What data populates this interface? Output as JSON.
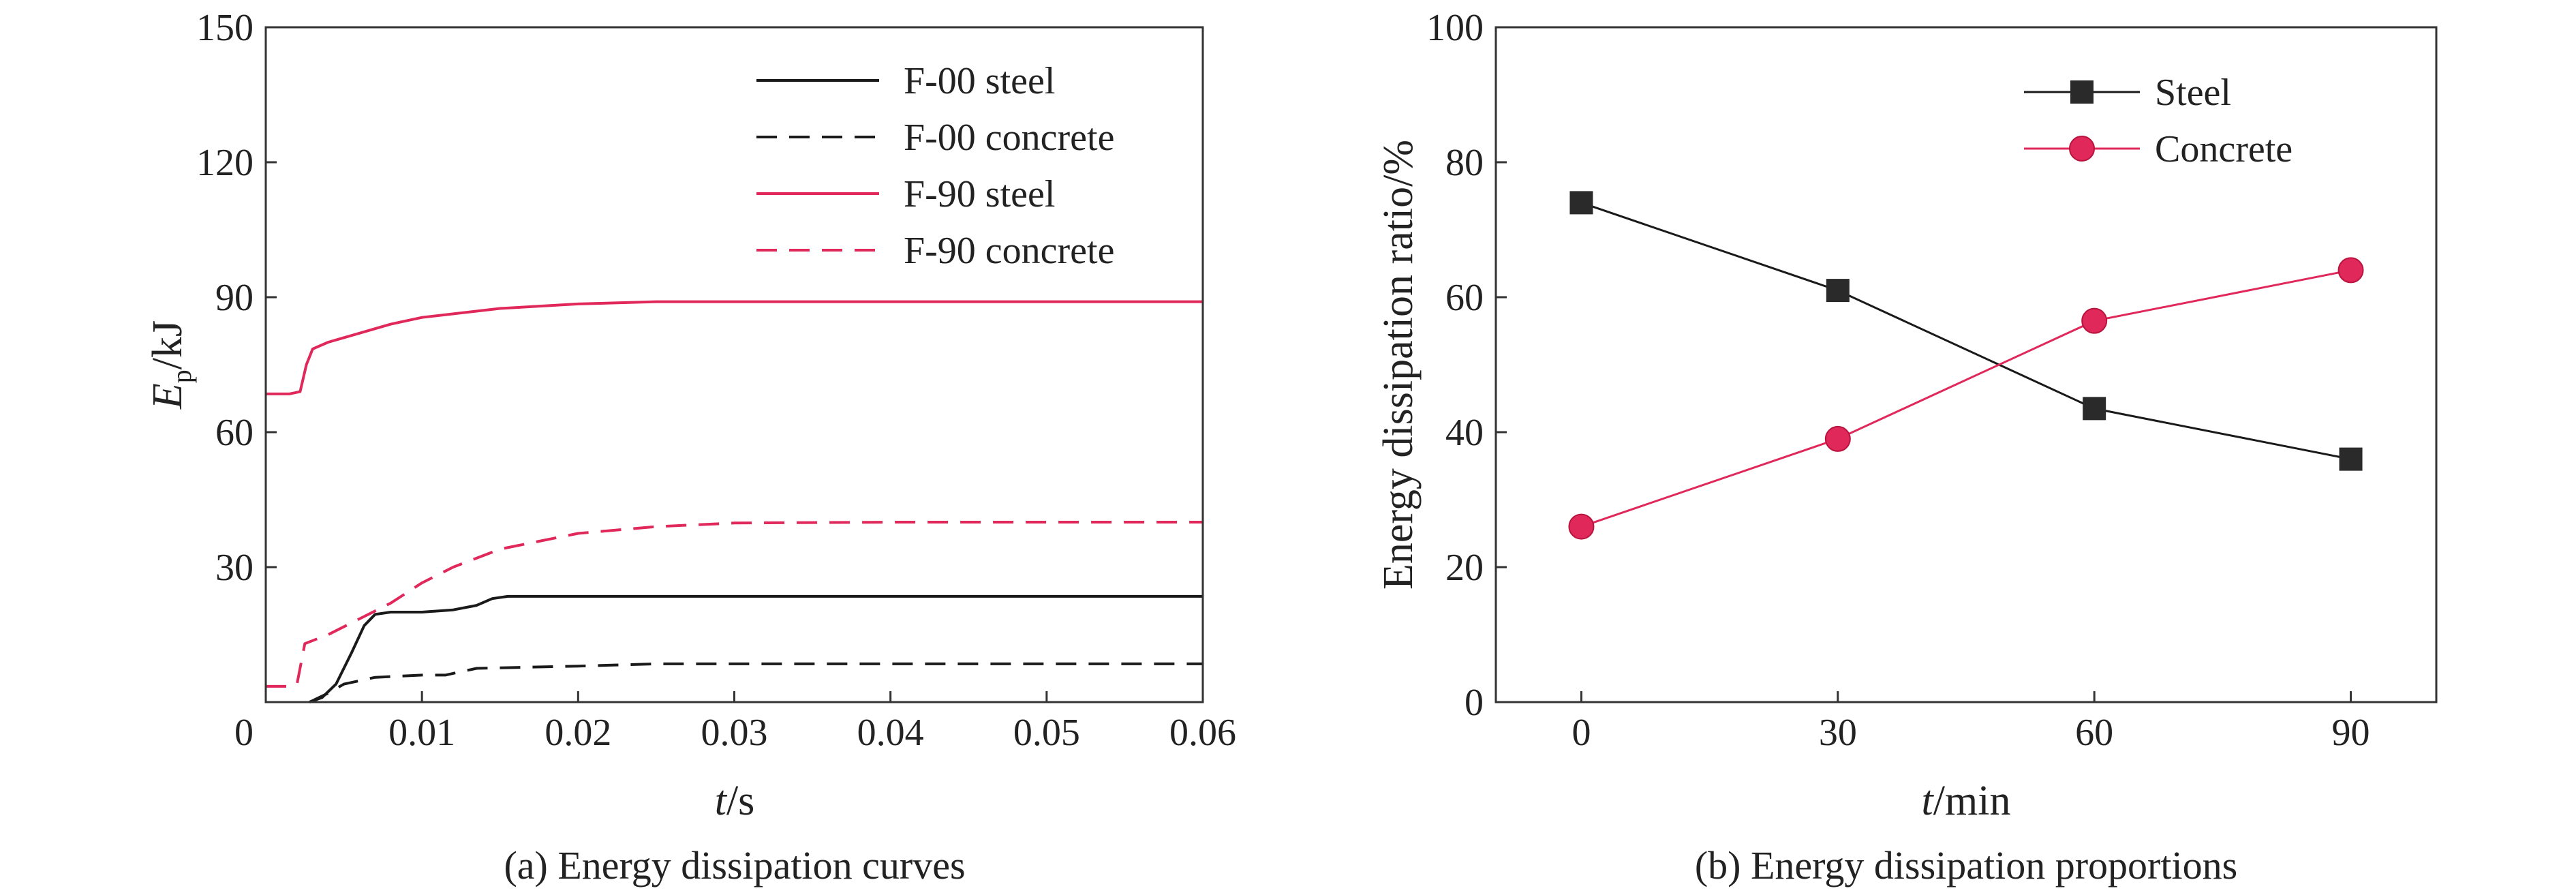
{
  "chart_data": [
    {
      "type": "line",
      "caption": "(a) Energy dissipation curves",
      "xlabel_italic": "t",
      "xlabel_unit": "/s",
      "ylabel_main": "E",
      "ylabel_sub": "p",
      "ylabel_unit": "/kJ",
      "xlim": [
        0,
        0.06
      ],
      "ylim": [
        0,
        150
      ],
      "xticks": [
        "0",
        "0.01",
        "0.02",
        "0.03",
        "0.04",
        "0.05",
        "0.06"
      ],
      "yticks": [
        "30",
        "60",
        "90",
        "120",
        "150"
      ],
      "legend_position": "top-right",
      "series": [
        {
          "name": "F-00 steel",
          "color": "#1a1a1a",
          "dashed": false,
          "points": [
            [
              0.0028,
              0
            ],
            [
              0.0036,
              1
            ],
            [
              0.0045,
              4
            ],
            [
              0.0055,
              11
            ],
            [
              0.0063,
              17
            ],
            [
              0.007,
              19.5
            ],
            [
              0.008,
              20
            ],
            [
              0.01,
              20
            ],
            [
              0.012,
              20.5
            ],
            [
              0.0135,
              21.5
            ],
            [
              0.0145,
              23
            ],
            [
              0.0155,
              23.5
            ],
            [
              0.02,
              23.5
            ],
            [
              0.03,
              23.5
            ],
            [
              0.04,
              23.5
            ],
            [
              0.05,
              23.5
            ],
            [
              0.06,
              23.5
            ]
          ]
        },
        {
          "name": "F-00 concrete",
          "color": "#1a1a1a",
          "dashed": true,
          "points": [
            [
              0.0028,
              0
            ],
            [
              0.004,
              2
            ],
            [
              0.005,
              4
            ],
            [
              0.007,
              5.5
            ],
            [
              0.01,
              6
            ],
            [
              0.0115,
              6
            ],
            [
              0.0135,
              7.5
            ],
            [
              0.02,
              8
            ],
            [
              0.025,
              8.5
            ],
            [
              0.03,
              8.5
            ],
            [
              0.04,
              8.5
            ],
            [
              0.05,
              8.5
            ],
            [
              0.06,
              8.5
            ]
          ]
        },
        {
          "name": "F-90 steel",
          "color": "#e0285a",
          "dashed": false,
          "points": [
            [
              0,
              68.5
            ],
            [
              0.0015,
              68.5
            ],
            [
              0.0022,
              69
            ],
            [
              0.0026,
              75
            ],
            [
              0.003,
              78.5
            ],
            [
              0.004,
              80
            ],
            [
              0.006,
              82
            ],
            [
              0.008,
              84
            ],
            [
              0.01,
              85.5
            ],
            [
              0.015,
              87.5
            ],
            [
              0.02,
              88.5
            ],
            [
              0.025,
              89
            ],
            [
              0.03,
              89
            ],
            [
              0.04,
              89
            ],
            [
              0.05,
              89
            ],
            [
              0.06,
              89
            ]
          ]
        },
        {
          "name": "F-90 concrete",
          "color": "#e0285a",
          "dashed": true,
          "points": [
            [
              0,
              3.5
            ],
            [
              0.0015,
              3.5
            ],
            [
              0.002,
              4
            ],
            [
              0.0025,
              13
            ],
            [
              0.004,
              15
            ],
            [
              0.006,
              18.5
            ],
            [
              0.008,
              22
            ],
            [
              0.01,
              26.5
            ],
            [
              0.012,
              30
            ],
            [
              0.015,
              34
            ],
            [
              0.02,
              37.5
            ],
            [
              0.025,
              39
            ],
            [
              0.03,
              39.8
            ],
            [
              0.04,
              40
            ],
            [
              0.05,
              40
            ],
            [
              0.06,
              40
            ]
          ]
        }
      ]
    },
    {
      "type": "line",
      "caption": "(b) Energy dissipation proportions",
      "xlabel_italic": "t",
      "xlabel_unit": "/min",
      "ylabel": "Energy dissipation ratio/%",
      "xlim": [
        -10,
        100
      ],
      "ylim": [
        0,
        100
      ],
      "x": [
        0,
        30,
        60,
        90
      ],
      "xticks": [
        "0",
        "30",
        "60",
        "90"
      ],
      "yticks": [
        "0",
        "20",
        "40",
        "60",
        "80",
        "100"
      ],
      "legend_position": "top-center",
      "series": [
        {
          "name": "Steel",
          "color": "#1a1a1a",
          "marker": "square",
          "values": [
            74,
            61,
            43.5,
            36
          ]
        },
        {
          "name": "Concrete",
          "color": "#e0285a",
          "marker": "circle",
          "values": [
            26,
            39,
            56.5,
            64
          ]
        }
      ]
    }
  ]
}
